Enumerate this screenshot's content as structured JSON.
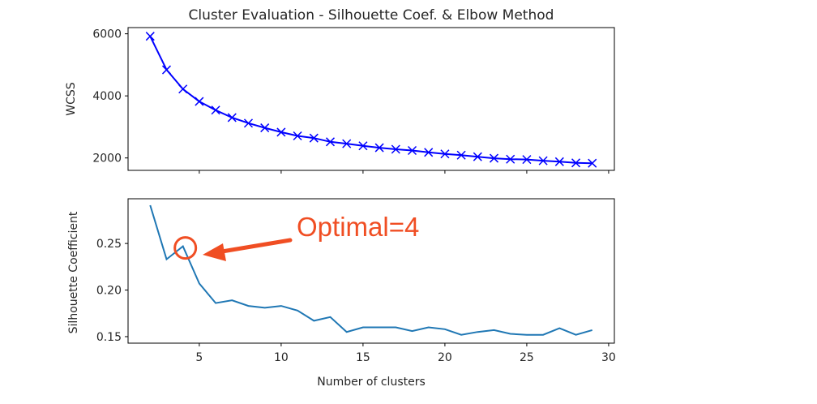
{
  "chart_data": [
    {
      "type": "line",
      "title": "Cluster Evaluation - Silhouette Coef. & Elbow Method",
      "xlabel": "",
      "ylabel": "WCSS",
      "xlim": [
        0.65,
        30.35
      ],
      "ylim": [
        1600,
        6200
      ],
      "yticks": [
        2000,
        4000,
        6000
      ],
      "xticks": [
        5,
        10,
        15,
        20,
        25,
        30
      ],
      "grid": false,
      "marker": "x",
      "color": "#0000ff",
      "series": [
        {
          "x": [
            2,
            3,
            4,
            5,
            6,
            7,
            8,
            9,
            10,
            11,
            12,
            13,
            14,
            15,
            16,
            17,
            18,
            19,
            20,
            21,
            22,
            23,
            24,
            25,
            26,
            27,
            28,
            29
          ],
          "values": [
            5920,
            4840,
            4220,
            3820,
            3540,
            3300,
            3120,
            2970,
            2830,
            2710,
            2640,
            2520,
            2460,
            2390,
            2330,
            2280,
            2240,
            2180,
            2130,
            2090,
            2040,
            1990,
            1960,
            1950,
            1910,
            1880,
            1840,
            1830
          ]
        }
      ]
    },
    {
      "type": "line",
      "title": "",
      "xlabel": "Number of clusters",
      "ylabel": "Silhouette Coefficient",
      "xlim": [
        0.65,
        30.35
      ],
      "ylim": [
        0.143,
        0.298
      ],
      "yticks": [
        0.15,
        0.2,
        0.25
      ],
      "ytick_labels": [
        "0.15",
        "0.20",
        "0.25"
      ],
      "xticks": [
        5,
        10,
        15,
        20,
        25,
        30
      ],
      "grid": false,
      "color": "#1f77b4",
      "series": [
        {
          "x": [
            2,
            3,
            4,
            5,
            6,
            7,
            8,
            9,
            10,
            11,
            12,
            13,
            14,
            15,
            16,
            17,
            18,
            19,
            20,
            21,
            22,
            23,
            24,
            25,
            26,
            27,
            28,
            29
          ],
          "values": [
            0.291,
            0.233,
            0.247,
            0.207,
            0.186,
            0.189,
            0.183,
            0.181,
            0.183,
            0.178,
            0.167,
            0.171,
            0.155,
            0.16,
            0.16,
            0.16,
            0.156,
            0.16,
            0.158,
            0.152,
            0.155,
            0.157,
            0.153,
            0.152,
            0.152,
            0.159,
            0.152,
            0.157
          ]
        }
      ],
      "annotation": {
        "text": "Optimal=4",
        "target_x": 4,
        "target_y": 0.247,
        "color": "#f04e23"
      }
    }
  ]
}
